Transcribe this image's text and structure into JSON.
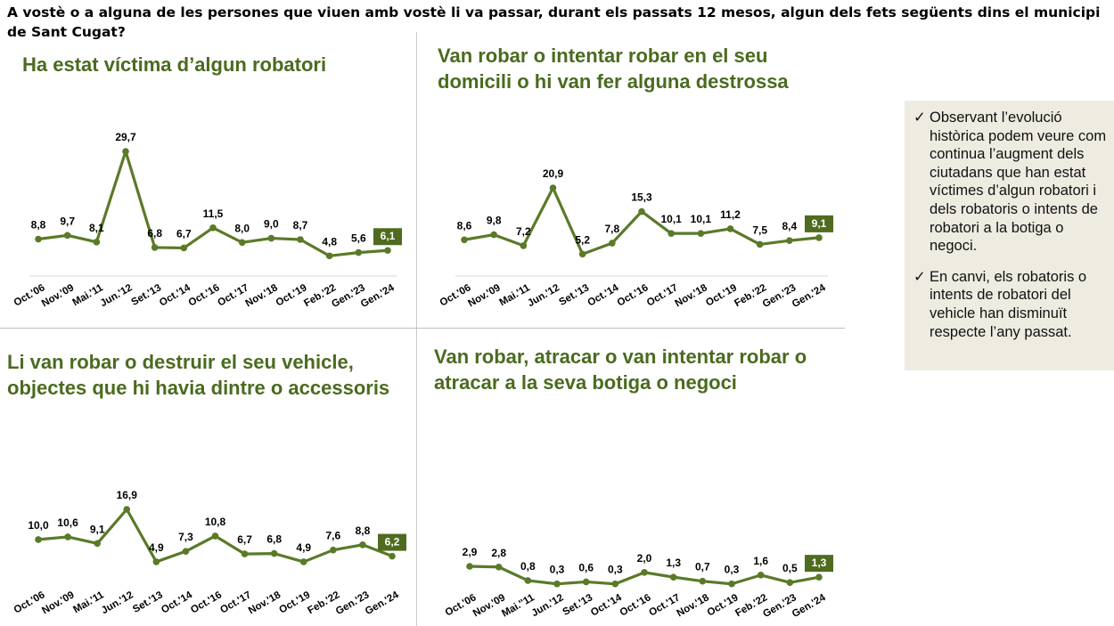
{
  "header": {
    "question": "A vostè o a alguna de les persones que viuen amb vostè li va passar, durant els passats 12 mesos, algun dels fets següents dins el municipi de Sant Cugat?"
  },
  "colors": {
    "line": "#5a7a28",
    "title": "#4a6b1f",
    "highlight_box": "#4f6b1f",
    "panel_bg": "#eeebe1"
  },
  "notes": [
    "Observant l’evolució històrica podem veure com continua l’augment dels ciutadans que han estat víctimes d’algun robatori i dels robatoris o intents de robatori a la botiga o negoci.",
    "En canvi, els robatoris o intents de robatori del vehicle han disminuït respecte l’any passat."
  ],
  "check_glyph": "✓",
  "chart_data": [
    {
      "type": "line",
      "title": "Ha estat víctima d’algun robatori",
      "categories": [
        "Oct.'06",
        "Nov.'09",
        "Mai.'11",
        "Jun.'12",
        "Set.'13",
        "Oct.'14",
        "Oct.'16",
        "Oct.'17",
        "Nov.'18",
        "Oct.'19",
        "Feb.'22",
        "Gen.'23",
        "Gen.'24"
      ],
      "values": [
        8.8,
        9.7,
        8.1,
        29.7,
        6.8,
        6.7,
        11.5,
        8.0,
        9.0,
        8.7,
        4.8,
        5.6,
        6.1
      ],
      "labels": [
        "8,8",
        "9,7",
        "8,1",
        "29,7",
        "6,8",
        "6,7",
        "11,5",
        "8,0",
        "9,0",
        "8,7",
        "4,8",
        "5,6",
        "6,1"
      ],
      "highlight_last": true
    },
    {
      "type": "line",
      "title": "Van robar o intentar robar en el seu domicili o hi van fer alguna destrossa",
      "categories": [
        "Oct.'06",
        "Nov.'09",
        "Mai.'11",
        "Jun.'12",
        "Set.'13",
        "Oct.'14",
        "Oct.'16",
        "Oct.'17",
        "Nov.'18",
        "Oct.'19",
        "Feb.'22",
        "Gen.'23",
        "Gen.'24"
      ],
      "values": [
        8.6,
        9.8,
        7.2,
        20.9,
        5.2,
        7.8,
        15.3,
        10.1,
        10.1,
        11.2,
        7.5,
        8.4,
        9.1
      ],
      "labels": [
        "8,6",
        "9,8",
        "7,2",
        "20,9",
        "5,2",
        "7,8",
        "15,3",
        "10,1",
        "10,1",
        "11,2",
        "7,5",
        "8,4",
        "9,1"
      ],
      "highlight_last": true
    },
    {
      "type": "line",
      "title": "Li van robar o destruir el seu vehicle, objectes que hi havia dintre o accessoris",
      "categories": [
        "Oct.'06",
        "Nov.'09",
        "Mai.'11",
        "Jun.'12",
        "Set.'13",
        "Oct.'14",
        "Oct.'16",
        "Oct.'17",
        "Nov.'18",
        "Oct.'19",
        "Feb.'22",
        "Gen.'23",
        "Gen.'24"
      ],
      "values": [
        10.0,
        10.6,
        9.1,
        16.9,
        4.9,
        7.3,
        10.8,
        6.7,
        6.8,
        4.9,
        7.6,
        8.8,
        6.2
      ],
      "labels": [
        "10,0",
        "10,6",
        "9,1",
        "16,9",
        "4,9",
        "7,3",
        "10,8",
        "6,7",
        "6,8",
        "4,9",
        "7,6",
        "8,8",
        "6,2"
      ],
      "highlight_last": true
    },
    {
      "type": "line",
      "title": "Van robar, atracar o van intentar robar  o atracar a la seva botiga o negoci",
      "categories": [
        "Oct.'06",
        "Nov.'09",
        "Mai.''11",
        "Jun.'12",
        "Set.'13",
        "Oct.'14",
        "Oct.'16",
        "Oct.'17",
        "Nov.'18",
        "Oct.'19",
        "Feb.'22",
        "Gen.'23",
        "Gen.'24"
      ],
      "values": [
        2.9,
        2.8,
        0.8,
        0.3,
        0.6,
        0.3,
        2.0,
        1.3,
        0.7,
        0.3,
        1.6,
        0.5,
        1.3
      ],
      "labels": [
        "2,9",
        "2,8",
        "0,8",
        "0,3",
        "0,6",
        "0,3",
        "2,0",
        "1,3",
        "0,7",
        "0,3",
        "1,6",
        "0,5",
        "1,3"
      ],
      "highlight_last": true
    }
  ]
}
